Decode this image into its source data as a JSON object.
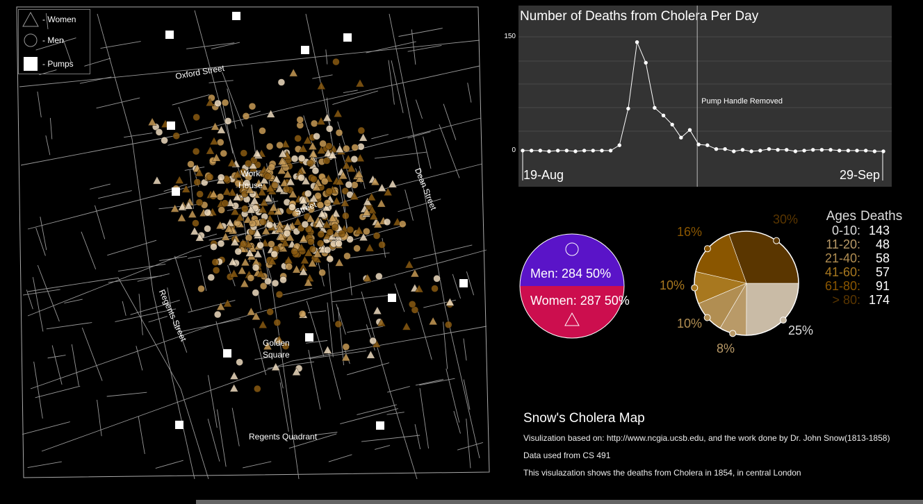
{
  "legend": {
    "women_label": "- Women",
    "men_label": "- Men",
    "pumps_label": "- Pumps"
  },
  "map": {
    "labels": {
      "oxford_street": "Oxford Street",
      "work_house_1": "Work",
      "work_house_2": "House",
      "broad_street": "Street",
      "dean_street": "Dean Street",
      "regents_street": "Regents Street",
      "golden_square_1": "Golden",
      "golden_square_2": "Square",
      "regents_quadrant": "Regents Quadrant"
    },
    "colors": {
      "background": "#000000",
      "streets": "#9a9a9a",
      "pump": "#ffffff",
      "death_light": "#efdcc0",
      "death_mid": "#c79a55",
      "death_dark": "#8a5a12"
    }
  },
  "chart_data": [
    {
      "type": "line",
      "title": "Number of Deaths from Cholera Per Day",
      "x_start_label": "19-Aug",
      "x_end_label": "29-Sep",
      "y_ticks": [
        "0",
        "150"
      ],
      "ylim": [
        0,
        150
      ],
      "annotation": "Pump Handle Removed",
      "annotation_index": 20,
      "values": [
        1,
        1,
        1,
        0,
        1,
        1,
        0,
        1,
        1,
        1,
        1,
        8,
        56,
        143,
        116,
        57,
        47,
        35,
        18,
        28,
        9,
        8,
        3,
        3,
        0,
        2,
        0,
        1,
        3,
        2,
        2,
        0,
        1,
        2,
        2,
        2,
        1,
        1,
        1,
        1,
        0,
        0
      ],
      "colors": {
        "background": "#333333",
        "line": "#ffffff",
        "grid": "#4a4a4a"
      }
    },
    {
      "type": "pie",
      "series": [
        {
          "name": "Men",
          "label": "Men: 284 50%",
          "value": 284,
          "color": "#5a14c8"
        },
        {
          "name": "Women",
          "label": "Women: 287 50%",
          "value": 287,
          "color": "#cc0e4e"
        }
      ]
    },
    {
      "type": "pie",
      "columns": [
        "Ages",
        "Deaths"
      ],
      "rows": [
        {
          "age": "0-10:",
          "deaths": 143,
          "percent": "25%",
          "color": "#c9bba6"
        },
        {
          "age": "11-20:",
          "deaths": 48,
          "percent": "8%",
          "color": "#b99a68"
        },
        {
          "age": "21-40:",
          "deaths": 58,
          "percent": "10%",
          "color": "#b18e52"
        },
        {
          "age": "41-60:",
          "deaths": 57,
          "percent": "10%",
          "color": "#a8781f"
        },
        {
          "age": "61-80:",
          "deaths": 91,
          "percent": "16%",
          "color": "#8a5600"
        },
        {
          "age": "> 80:",
          "deaths": 174,
          "percent": "30%",
          "color": "#5a3600"
        }
      ]
    }
  ],
  "info": {
    "title": "Snow's Cholera Map",
    "line1": "Visulization based on: http://www.ncgia.ucsb.edu, and the work done by Dr. John Snow(1813-1858)",
    "line2": "Data used from CS 491",
    "line3": "This visulazation shows the deaths from Cholera in 1854, in central London"
  }
}
